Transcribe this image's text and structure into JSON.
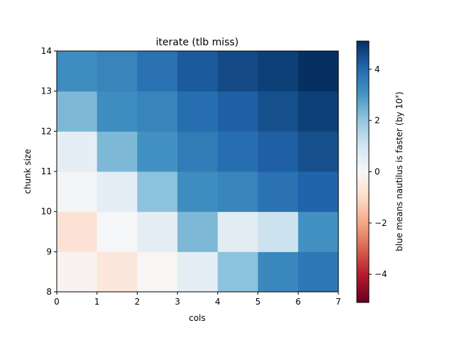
{
  "chart_data": {
    "type": "heatmap",
    "title": "iterate (tlb miss)",
    "xlabel": "cols",
    "ylabel": "chunk size",
    "x_range": [
      0,
      7
    ],
    "y_range": [
      8,
      14
    ],
    "x_ticks": [
      "0",
      "1",
      "2",
      "3",
      "4",
      "5",
      "6",
      "7"
    ],
    "y_ticks": [
      "8",
      "9",
      "10",
      "11",
      "12",
      "13",
      "14"
    ],
    "z": [
      [
        -0.15,
        -0.6,
        -0.05,
        0.5,
        2.1,
        3.3,
        3.7
      ],
      [
        -0.75,
        0.05,
        0.5,
        2.3,
        0.6,
        1.1,
        3.1
      ],
      [
        0.1,
        0.5,
        2.1,
        3.2,
        3.4,
        3.8,
        4.1
      ],
      [
        0.5,
        2.3,
        3.1,
        3.6,
        3.9,
        4.2,
        4.5
      ],
      [
        2.3,
        3.2,
        3.4,
        3.9,
        4.2,
        4.5,
        4.8
      ],
      [
        3.2,
        3.4,
        3.8,
        4.3,
        4.6,
        4.8,
        5.1
      ]
    ],
    "colormap": "RdBu",
    "vmin": -5.1,
    "vmax": 5.1,
    "colorbar": {
      "label": "blue means nautilus is faster (by 10^x)",
      "label_prefix": "blue means nautilus is faster (by 10",
      "label_sup": "x",
      "label_suffix": ")",
      "ticks": [
        -4,
        -2,
        0,
        2,
        4
      ],
      "tick_labels": [
        "−4",
        "−2",
        "0",
        "2",
        "4"
      ]
    },
    "grid": false
  }
}
